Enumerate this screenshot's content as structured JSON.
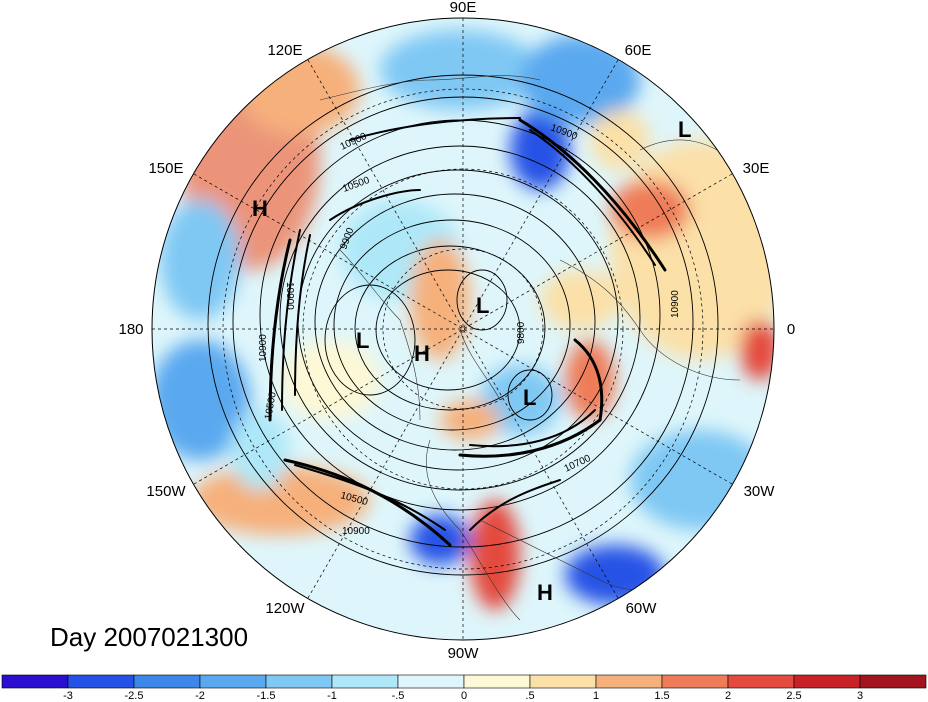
{
  "title": "Day 2007021300",
  "longitude_labels": [
    {
      "text": "90E",
      "id": "lon-90e"
    },
    {
      "text": "60E",
      "id": "lon-60e"
    },
    {
      "text": "30E",
      "id": "lon-30e"
    },
    {
      "text": "0",
      "id": "lon-0"
    },
    {
      "text": "30W",
      "id": "lon-30w"
    },
    {
      "text": "60W",
      "id": "lon-60w"
    },
    {
      "text": "90W",
      "id": "lon-90w"
    },
    {
      "text": "120W",
      "id": "lon-120w"
    },
    {
      "text": "150W",
      "id": "lon-150w"
    },
    {
      "text": "180",
      "id": "lon-180"
    },
    {
      "text": "150E",
      "id": "lon-150e"
    },
    {
      "text": "120E",
      "id": "lon-120e"
    }
  ],
  "pressure_systems": [
    {
      "text": "H",
      "id": "high-north-pacific"
    },
    {
      "text": "L",
      "id": "low-europe"
    },
    {
      "text": "L",
      "id": "low-arctic"
    },
    {
      "text": "L",
      "id": "low-alaska"
    },
    {
      "text": "H",
      "id": "high-canada"
    },
    {
      "text": "L",
      "id": "low-greenland-sea"
    },
    {
      "text": "H",
      "id": "high-atlantic"
    }
  ],
  "contour_labels": [
    "10900",
    "10500",
    "9900",
    "10900",
    "10900",
    "10500",
    "10900",
    "9800",
    "10900",
    "10700",
    "10500",
    "10900"
  ],
  "colorbar": {
    "ticks": [
      "-3",
      "-2.5",
      "-2",
      "-1.5",
      "-1",
      "-.5",
      "0",
      ".5",
      "1",
      "1.5",
      "2",
      "2.5",
      "3"
    ],
    "colors": [
      "#2a0fd0",
      "#2552e6",
      "#3d86ea",
      "#5aa8ef",
      "#7fc8f4",
      "#aee8f8",
      "#def6fb",
      "#fdf8d6",
      "#fbe0a8",
      "#f6b07c",
      "#ef7c58",
      "#e44a3e",
      "#c82228",
      "#a2151f"
    ]
  }
}
